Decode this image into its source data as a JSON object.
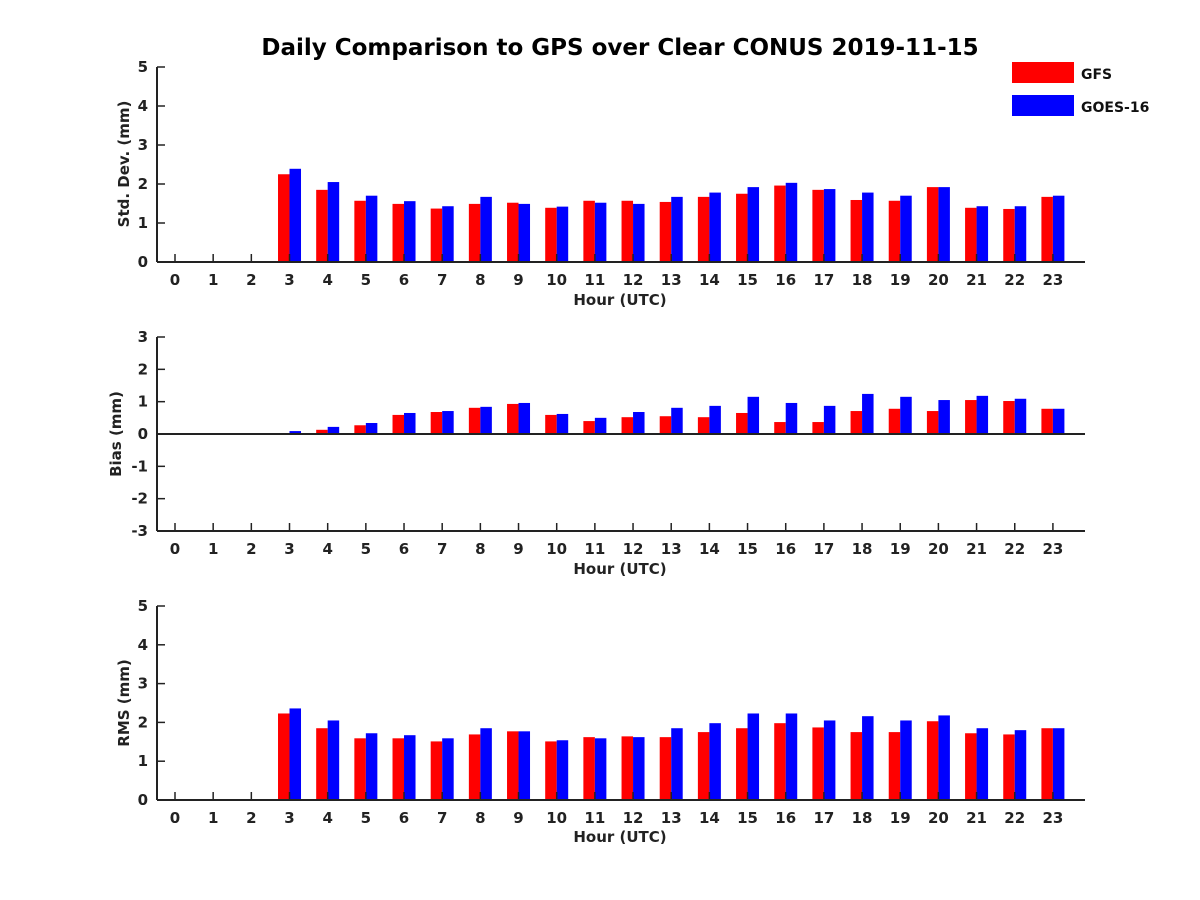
{
  "title": "Daily Comparison to GPS over Clear CONUS 2019-11-15",
  "legend": {
    "entries": [
      {
        "label": "GFS",
        "color": "#ff0000"
      },
      {
        "label": "GOES-16",
        "color": "#0000ff"
      }
    ]
  },
  "chart_data": [
    {
      "type": "bar",
      "id": "std",
      "xlabel": "Hour (UTC)",
      "ylabel": "Std. Dev. (mm)",
      "ylim": [
        0,
        5
      ],
      "yticks": [
        0,
        1,
        2,
        3,
        4,
        5
      ],
      "categories": [
        "0",
        "1",
        "2",
        "3",
        "4",
        "5",
        "6",
        "7",
        "8",
        "9",
        "10",
        "11",
        "12",
        "13",
        "14",
        "15",
        "16",
        "17",
        "18",
        "19",
        "20",
        "21",
        "22",
        "23"
      ],
      "series": [
        {
          "name": "GFS",
          "color": "#ff0000",
          "values": [
            null,
            null,
            null,
            2.25,
            1.85,
            1.57,
            1.49,
            1.37,
            1.49,
            1.52,
            1.39,
            1.57,
            1.57,
            1.54,
            1.67,
            1.75,
            1.96,
            1.85,
            1.59,
            1.57,
            1.92,
            1.39,
            1.36,
            1.67
          ]
        },
        {
          "name": "GOES-16",
          "color": "#0000ff",
          "values": [
            null,
            null,
            null,
            2.39,
            2.05,
            1.7,
            1.56,
            1.43,
            1.67,
            1.49,
            1.42,
            1.52,
            1.49,
            1.67,
            1.78,
            1.92,
            2.03,
            1.87,
            1.78,
            1.7,
            1.92,
            1.43,
            1.43,
            1.7
          ]
        }
      ]
    },
    {
      "type": "bar",
      "id": "bias",
      "xlabel": "Hour (UTC)",
      "ylabel": "Bias (mm)",
      "ylim": [
        -3,
        3
      ],
      "yticks": [
        -3,
        -2,
        -1,
        0,
        1,
        2,
        3
      ],
      "categories": [
        "0",
        "1",
        "2",
        "3",
        "4",
        "5",
        "6",
        "7",
        "8",
        "9",
        "10",
        "11",
        "12",
        "13",
        "14",
        "15",
        "16",
        "17",
        "18",
        "19",
        "20",
        "21",
        "22",
        "23"
      ],
      "series": [
        {
          "name": "GFS",
          "color": "#ff0000",
          "values": [
            null,
            null,
            null,
            0.03,
            0.13,
            0.27,
            0.59,
            0.68,
            0.81,
            0.93,
            0.59,
            0.4,
            0.52,
            0.55,
            0.52,
            0.65,
            0.37,
            0.37,
            0.71,
            0.78,
            0.71,
            1.05,
            1.02,
            0.78
          ]
        },
        {
          "name": "GOES-16",
          "color": "#0000ff",
          "values": [
            null,
            null,
            null,
            0.09,
            0.22,
            0.34,
            0.65,
            0.71,
            0.84,
            0.96,
            0.62,
            0.5,
            0.68,
            0.81,
            0.87,
            1.15,
            0.96,
            0.87,
            1.24,
            1.15,
            1.05,
            1.18,
            1.09,
            0.78
          ]
        }
      ]
    },
    {
      "type": "bar",
      "id": "rms",
      "xlabel": "Hour (UTC)",
      "ylabel": "RMS (mm)",
      "ylim": [
        0,
        5
      ],
      "yticks": [
        0,
        1,
        2,
        3,
        4,
        5
      ],
      "categories": [
        "0",
        "1",
        "2",
        "3",
        "4",
        "5",
        "6",
        "7",
        "8",
        "9",
        "10",
        "11",
        "12",
        "13",
        "14",
        "15",
        "16",
        "17",
        "18",
        "19",
        "20",
        "21",
        "22",
        "23"
      ],
      "series": [
        {
          "name": "GFS",
          "color": "#ff0000",
          "values": [
            null,
            null,
            null,
            2.23,
            1.85,
            1.59,
            1.59,
            1.51,
            1.69,
            1.77,
            1.51,
            1.62,
            1.64,
            1.62,
            1.75,
            1.85,
            1.98,
            1.87,
            1.75,
            1.75,
            2.03,
            1.72,
            1.69,
            1.85
          ]
        },
        {
          "name": "GOES-16",
          "color": "#0000ff",
          "values": [
            null,
            null,
            null,
            2.36,
            2.05,
            1.72,
            1.67,
            1.59,
            1.85,
            1.77,
            1.54,
            1.59,
            1.62,
            1.85,
            1.98,
            2.23,
            2.23,
            2.05,
            2.16,
            2.05,
            2.18,
            1.85,
            1.8,
            1.85
          ]
        }
      ]
    }
  ]
}
